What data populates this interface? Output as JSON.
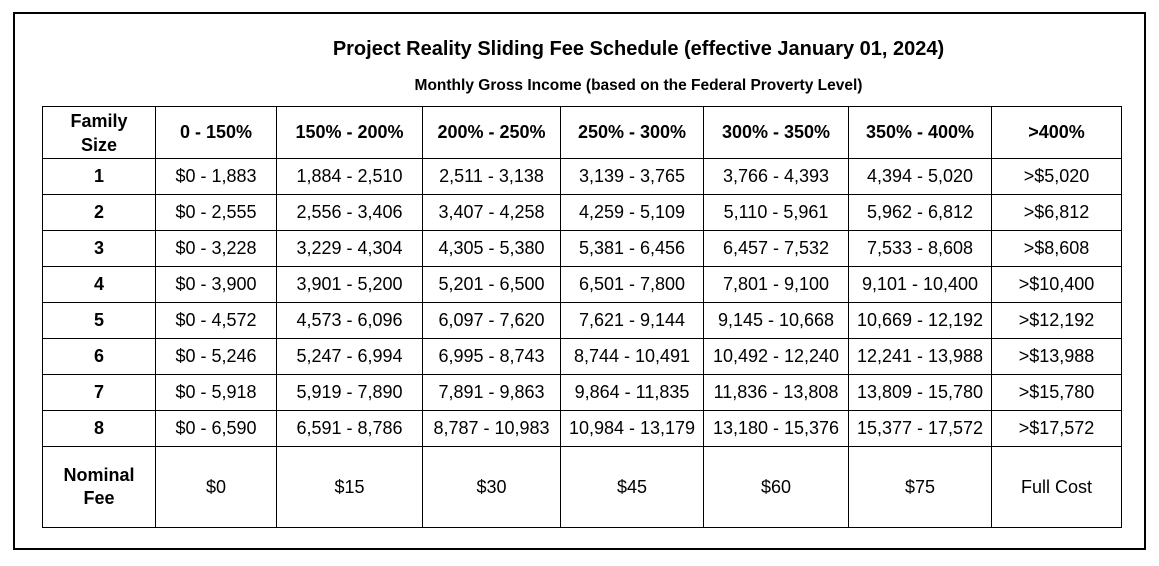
{
  "title": "Project Reality Sliding Fee Schedule (effective January 01, 2024)",
  "subtitle": "Monthly Gross Income (based on the Federal Proverty Level)",
  "table": {
    "header": {
      "family_size_line1": "Family",
      "family_size_line2": "Size",
      "columns": [
        "0 - 150%",
        "150% - 200%",
        "200% - 250%",
        "250% - 300%",
        "300% - 350%",
        "350% - 400%",
        ">400%"
      ]
    },
    "rows": [
      {
        "size": "1",
        "cells": [
          "$0 - 1,883",
          "1,884 - 2,510",
          "2,511 - 3,138",
          "3,139 - 3,765",
          "3,766 - 4,393",
          "4,394 - 5,020",
          ">$5,020"
        ]
      },
      {
        "size": "2",
        "cells": [
          "$0 - 2,555",
          "2,556 - 3,406",
          "3,407 - 4,258",
          "4,259 - 5,109",
          "5,110 - 5,961",
          "5,962 - 6,812",
          ">$6,812"
        ]
      },
      {
        "size": "3",
        "cells": [
          "$0 - 3,228",
          "3,229 - 4,304",
          "4,305 - 5,380",
          "5,381 - 6,456",
          "6,457 - 7,532",
          "7,533 - 8,608",
          ">$8,608"
        ]
      },
      {
        "size": "4",
        "cells": [
          "$0 - 3,900",
          "3,901 - 5,200",
          "5,201 - 6,500",
          "6,501 - 7,800",
          "7,801 - 9,100",
          "9,101 - 10,400",
          ">$10,400"
        ]
      },
      {
        "size": "5",
        "cells": [
          "$0 - 4,572",
          "4,573 - 6,096",
          "6,097 - 7,620",
          "7,621 - 9,144",
          "9,145 - 10,668",
          "10,669 - 12,192",
          ">$12,192"
        ]
      },
      {
        "size": "6",
        "cells": [
          "$0 - 5,246",
          "5,247 - 6,994",
          "6,995 - 8,743",
          "8,744 - 10,491",
          "10,492 - 12,240",
          "12,241 - 13,988",
          ">$13,988"
        ]
      },
      {
        "size": "7",
        "cells": [
          "$0 - 5,918",
          "5,919 - 7,890",
          "7,891 - 9,863",
          "9,864 - 11,835",
          "11,836 - 13,808",
          "13,809 - 15,780",
          ">$15,780"
        ]
      },
      {
        "size": "8",
        "cells": [
          "$0 - 6,590",
          "6,591 - 8,786",
          "8,787 - 10,983",
          "10,984 - 13,179",
          "13,180 - 15,376",
          "15,377 - 17,572",
          ">$17,572"
        ]
      }
    ],
    "nominal_fee": {
      "label_line1": "Nominal",
      "label_line2": "Fee",
      "values": [
        "$0",
        "$15",
        "$30",
        "$45",
        "$60",
        "$75",
        "Full Cost"
      ]
    }
  }
}
